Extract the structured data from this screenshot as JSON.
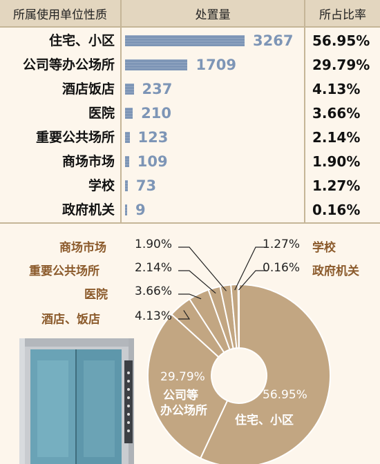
{
  "table": {
    "header_category": "所属使用单位性质",
    "header_count": "处置量",
    "header_share": "所占比率"
  },
  "chart_data": [
    {
      "type": "bar",
      "orientation": "horizontal",
      "categories": [
        "住宅、小区",
        "公司等办公场所",
        "酒店饭店",
        "医院",
        "重要公共场所",
        "商场市场",
        "学校",
        "政府机关"
      ],
      "values": [
        3267,
        1709,
        237,
        210,
        123,
        109,
        73,
        9
      ],
      "shares": [
        "56.95%",
        "29.79%",
        "4.13%",
        "3.66%",
        "2.14%",
        "1.90%",
        "1.27%",
        "0.16%"
      ],
      "colors": {
        "bar": "#7d95b6"
      }
    },
    {
      "type": "pie",
      "style": "donut",
      "slices": [
        {
          "label": "住宅、小区",
          "value": 56.95,
          "text": "56.95%"
        },
        {
          "label": "公司等办公场所",
          "value": 29.79,
          "text": "29.79%"
        },
        {
          "label": "酒店、饭店",
          "value": 4.13,
          "text": "4.13%"
        },
        {
          "label": "医院",
          "value": 3.66,
          "text": "3.66%"
        },
        {
          "label": "重要公共场所",
          "value": 2.14,
          "text": "2.14%"
        },
        {
          "label": "商场市场",
          "value": 1.9,
          "text": "1.90%"
        },
        {
          "label": "学校",
          "value": 1.27,
          "text": "1.27%"
        },
        {
          "label": "政府机关",
          "value": 0.16,
          "text": "0.16%"
        }
      ],
      "inner_labels": {
        "big_pct": "56.95%",
        "big_name": "住宅、小区",
        "second_pct": "29.79%",
        "second_name_line1": "公司等",
        "second_name_line2": "办公场所"
      },
      "colors": {
        "slice": "#c2a682",
        "separator": "#ffffff",
        "label_name": "#8b5a2b"
      }
    }
  ],
  "illustration": {
    "icon": "elevator-icon"
  }
}
